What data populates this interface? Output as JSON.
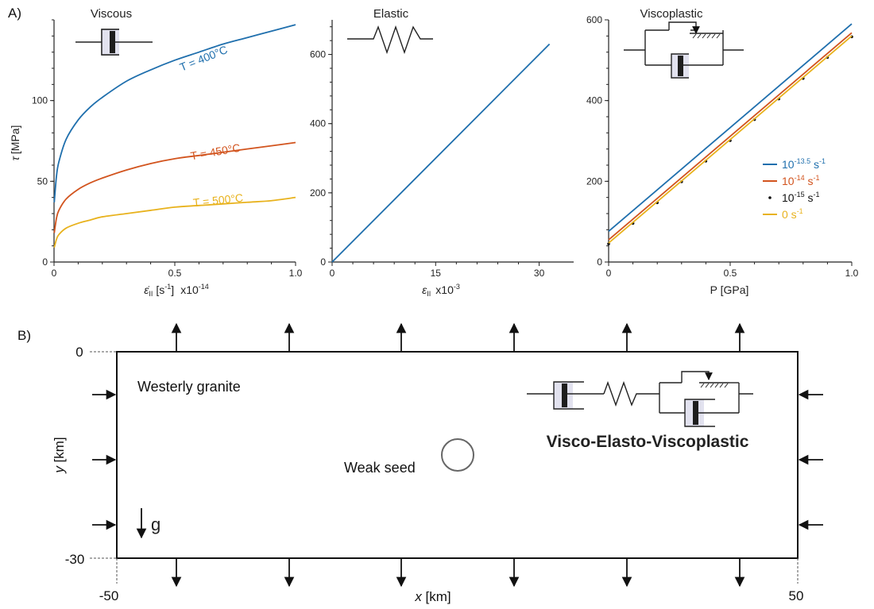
{
  "panels": {
    "a": "A)",
    "b": "B)"
  },
  "colors": {
    "blue": "#1f6fad",
    "red": "#d2541e",
    "yellow": "#e8b21d",
    "black": "#111111",
    "dashpot_fill": "#e2e2ef"
  },
  "symbol_icons": [
    "dashpot-icon",
    "spring-icon",
    "slider-icon",
    "viscoplastic-element-icon",
    "arrow-icon"
  ],
  "chart_data": [
    {
      "type": "line",
      "title": "Viscous",
      "xlabel_parts": {
        "symbol": "ε̇",
        "sub": "II",
        "unit": "[s",
        "sup": "-1",
        "close": "]",
        "scale": "x10",
        "scale_sup": "-14"
      },
      "ylabel_parts": {
        "symbol": "τ",
        "unit": "[MPa]"
      },
      "xlim": [
        0,
        1.0
      ],
      "ylim": [
        0,
        150
      ],
      "xticks": [
        {
          "v": 0,
          "label": "0"
        },
        {
          "v": 0.5,
          "label": "0.5"
        },
        {
          "v": 1.0,
          "label": "1.0"
        }
      ],
      "yticks": [
        {
          "v": 0,
          "label": "0"
        },
        {
          "v": 50,
          "label": "50"
        },
        {
          "v": 100,
          "label": "100"
        }
      ],
      "series": [
        {
          "name": "T = 400°C",
          "color": "#1f6fad",
          "x": [
            0.001,
            0.01,
            0.02,
            0.05,
            0.1,
            0.15,
            0.2,
            0.3,
            0.4,
            0.5,
            0.6,
            0.7,
            0.8,
            0.9,
            1.0
          ],
          "y": [
            37,
            53,
            62,
            76,
            88,
            96,
            102,
            112,
            119,
            125,
            130,
            135,
            139,
            143,
            147
          ]
        },
        {
          "name": "T = 450°C",
          "color": "#d2541e",
          "x": [
            0.001,
            0.01,
            0.02,
            0.05,
            0.1,
            0.15,
            0.2,
            0.3,
            0.4,
            0.5,
            0.6,
            0.7,
            0.8,
            0.9,
            1.0
          ],
          "y": [
            18,
            27,
            32,
            39,
            45,
            49,
            52,
            57,
            61,
            64,
            66,
            68,
            70,
            72,
            74
          ]
        },
        {
          "name": "T = 500°C",
          "color": "#e8b21d",
          "x": [
            0.001,
            0.01,
            0.02,
            0.05,
            0.1,
            0.15,
            0.2,
            0.3,
            0.4,
            0.5,
            0.6,
            0.7,
            0.8,
            0.9,
            1.0
          ],
          "y": [
            9,
            14,
            17,
            21,
            24,
            26,
            28,
            30,
            32,
            34,
            35,
            36,
            37,
            38,
            40
          ]
        }
      ]
    },
    {
      "type": "line",
      "title": "Elastic",
      "xlabel_parts": {
        "symbol": "ε",
        "sub": "II",
        "scale": "x10",
        "scale_sup": "-3"
      },
      "xlim": [
        0,
        35
      ],
      "ylim": [
        0,
        700
      ],
      "xticks": [
        {
          "v": 0,
          "label": "0"
        },
        {
          "v": 15,
          "label": "15"
        },
        {
          "v": 30,
          "label": "30"
        }
      ],
      "yticks": [
        {
          "v": 0,
          "label": "0"
        },
        {
          "v": 200,
          "label": "200"
        },
        {
          "v": 400,
          "label": "400"
        },
        {
          "v": 600,
          "label": "600"
        }
      ],
      "series": [
        {
          "color": "#1f6fad",
          "x": [
            0,
            31.5
          ],
          "y": [
            0,
            630
          ]
        }
      ]
    },
    {
      "type": "line",
      "title": "Viscoplastic",
      "xlabel": "P [GPa]",
      "xlim": [
        0,
        1.0
      ],
      "ylim": [
        0,
        600
      ],
      "xticks": [
        {
          "v": 0,
          "label": "0"
        },
        {
          "v": 0.5,
          "label": "0.5"
        },
        {
          "v": 1.0,
          "label": "1.0"
        }
      ],
      "yticks": [
        {
          "v": 0,
          "label": "0"
        },
        {
          "v": 200,
          "label": "200"
        },
        {
          "v": 400,
          "label": "400"
        },
        {
          "v": 600,
          "label": "600"
        }
      ],
      "legend_position": "right",
      "series": [
        {
          "legend_base": "10",
          "legend_sup": "-13.5",
          "legend_unit": " s",
          "legend_unit_sup": "-1",
          "color": "#1f6fad",
          "style": "line",
          "x": [
            0,
            1.0
          ],
          "y": [
            76,
            590
          ]
        },
        {
          "legend_base": "10",
          "legend_sup": "-14",
          "legend_unit": " s",
          "legend_unit_sup": "-1",
          "color": "#d2541e",
          "style": "line",
          "x": [
            0,
            1.0
          ],
          "y": [
            55,
            568
          ]
        },
        {
          "legend_base": "10",
          "legend_sup": "-15",
          "legend_unit": " s",
          "legend_unit_sup": "-1",
          "color": "#111111",
          "style": "points",
          "x": [
            0,
            0.1,
            0.2,
            0.3,
            0.4,
            0.5,
            0.6,
            0.7,
            0.8,
            0.9,
            1.0
          ],
          "y": [
            45,
            96,
            147,
            199,
            250,
            301,
            353,
            404,
            455,
            507,
            558
          ]
        },
        {
          "legend_base": "0",
          "legend_unit": " s",
          "legend_unit_sup": "-1",
          "color": "#e8b21d",
          "style": "line",
          "x": [
            0,
            1.0
          ],
          "y": [
            47,
            560
          ]
        }
      ]
    }
  ],
  "model": {
    "material_label": "Westerly granite",
    "seed_label": "Weak seed",
    "rheology_label": "Visco-Elasto-Viscoplastic",
    "gravity_label": "g",
    "x_axis": {
      "symbol": "x",
      "unit": " [km]",
      "min_label": "-50",
      "max_label": "50"
    },
    "y_axis": {
      "symbol": "y",
      "unit": " [km]",
      "top_label": "0",
      "bottom_label": "-30"
    }
  }
}
